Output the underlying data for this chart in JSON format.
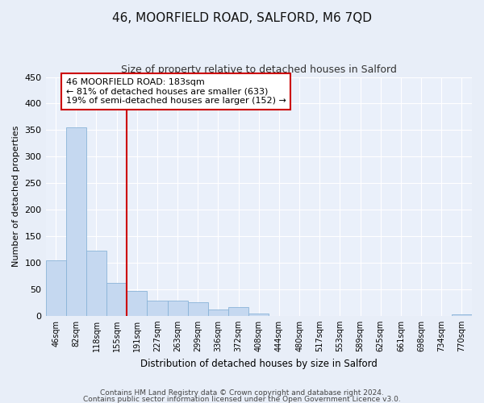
{
  "title": "46, MOORFIELD ROAD, SALFORD, M6 7QD",
  "subtitle": "Size of property relative to detached houses in Salford",
  "xlabel": "Distribution of detached houses by size in Salford",
  "ylabel": "Number of detached properties",
  "bar_color": "#c5d8f0",
  "bar_edge_color": "#8ab4d8",
  "bar_values": [
    105,
    355,
    122,
    62,
    47,
    29,
    29,
    25,
    12,
    16,
    5,
    0,
    0,
    0,
    0,
    0,
    0,
    0,
    0,
    0,
    2
  ],
  "bar_labels": [
    "46sqm",
    "82sqm",
    "118sqm",
    "155sqm",
    "191sqm",
    "227sqm",
    "263sqm",
    "299sqm",
    "336sqm",
    "372sqm",
    "408sqm",
    "444sqm",
    "480sqm",
    "517sqm",
    "553sqm",
    "589sqm",
    "625sqm",
    "661sqm",
    "698sqm",
    "734sqm",
    "770sqm"
  ],
  "vline_index": 4,
  "vline_color": "#cc0000",
  "annotation_text": "46 MOORFIELD ROAD: 183sqm\n← 81% of detached houses are smaller (633)\n19% of semi-detached houses are larger (152) →",
  "annotation_box_color": "#ffffff",
  "annotation_box_edge": "#cc0000",
  "ylim": [
    0,
    450
  ],
  "yticks": [
    0,
    50,
    100,
    150,
    200,
    250,
    300,
    350,
    400,
    450
  ],
  "bg_color": "#e8eef8",
  "plot_bg_color": "#eaf0fa",
  "footer_text1": "Contains HM Land Registry data © Crown copyright and database right 2024.",
  "footer_text2": "Contains public sector information licensed under the Open Government Licence v3.0."
}
